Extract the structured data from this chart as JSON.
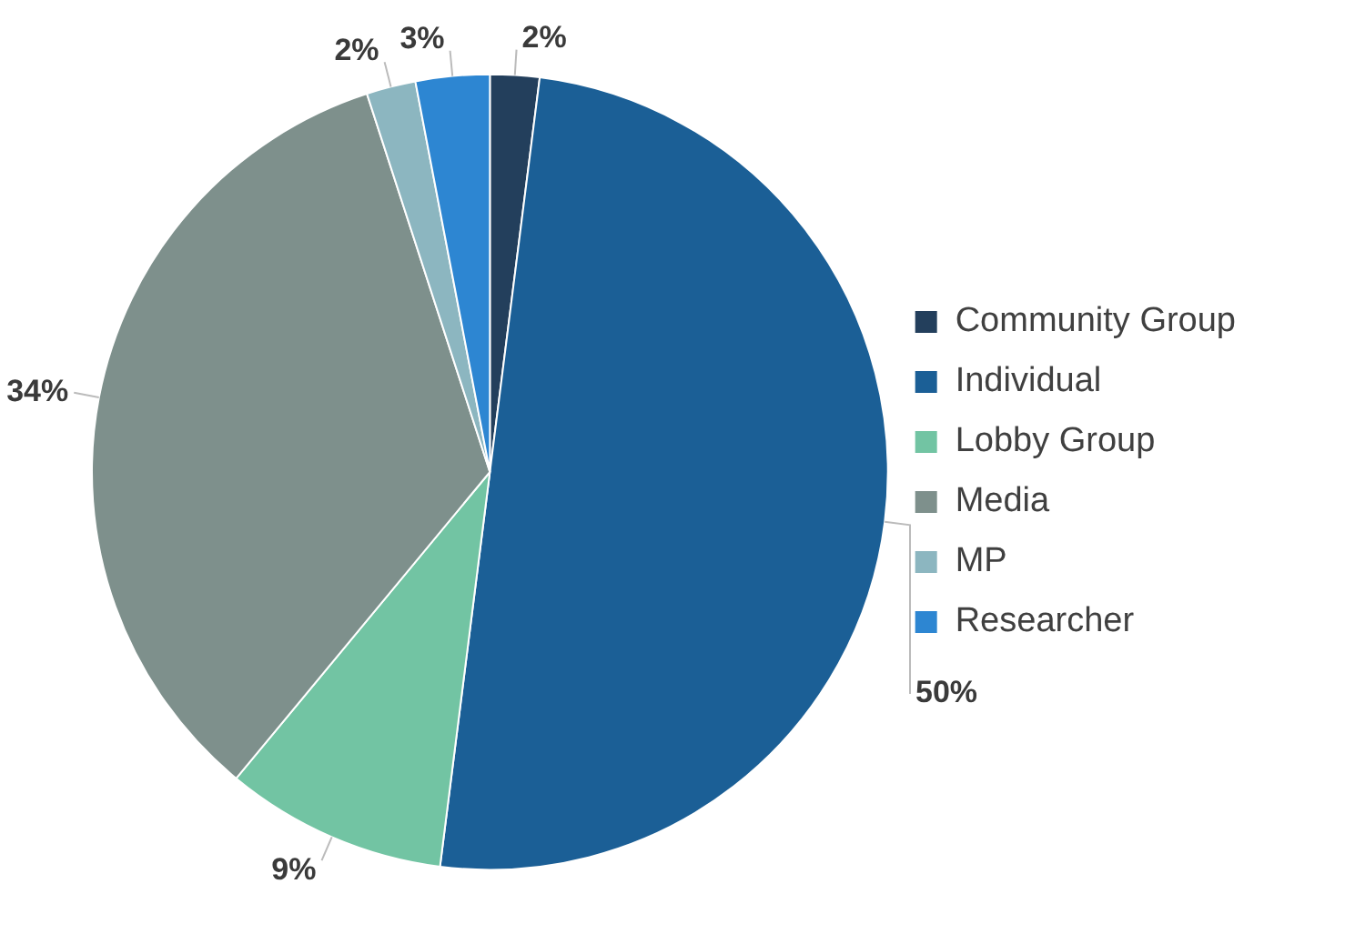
{
  "chart_data": {
    "type": "pie",
    "categories": [
      "Community Group",
      "Individual",
      "Lobby Group",
      "Media",
      "MP",
      "Researcher"
    ],
    "values": [
      2,
      50,
      9,
      34,
      2,
      3
    ],
    "colors": [
      "#233f5c",
      "#1b5f96",
      "#72c4a3",
      "#7e908c",
      "#8cb6c0",
      "#2d86d2"
    ],
    "value_labels": [
      "2%",
      "50%",
      "9%",
      "34%",
      "2%",
      "3%"
    ],
    "legend": "right"
  }
}
